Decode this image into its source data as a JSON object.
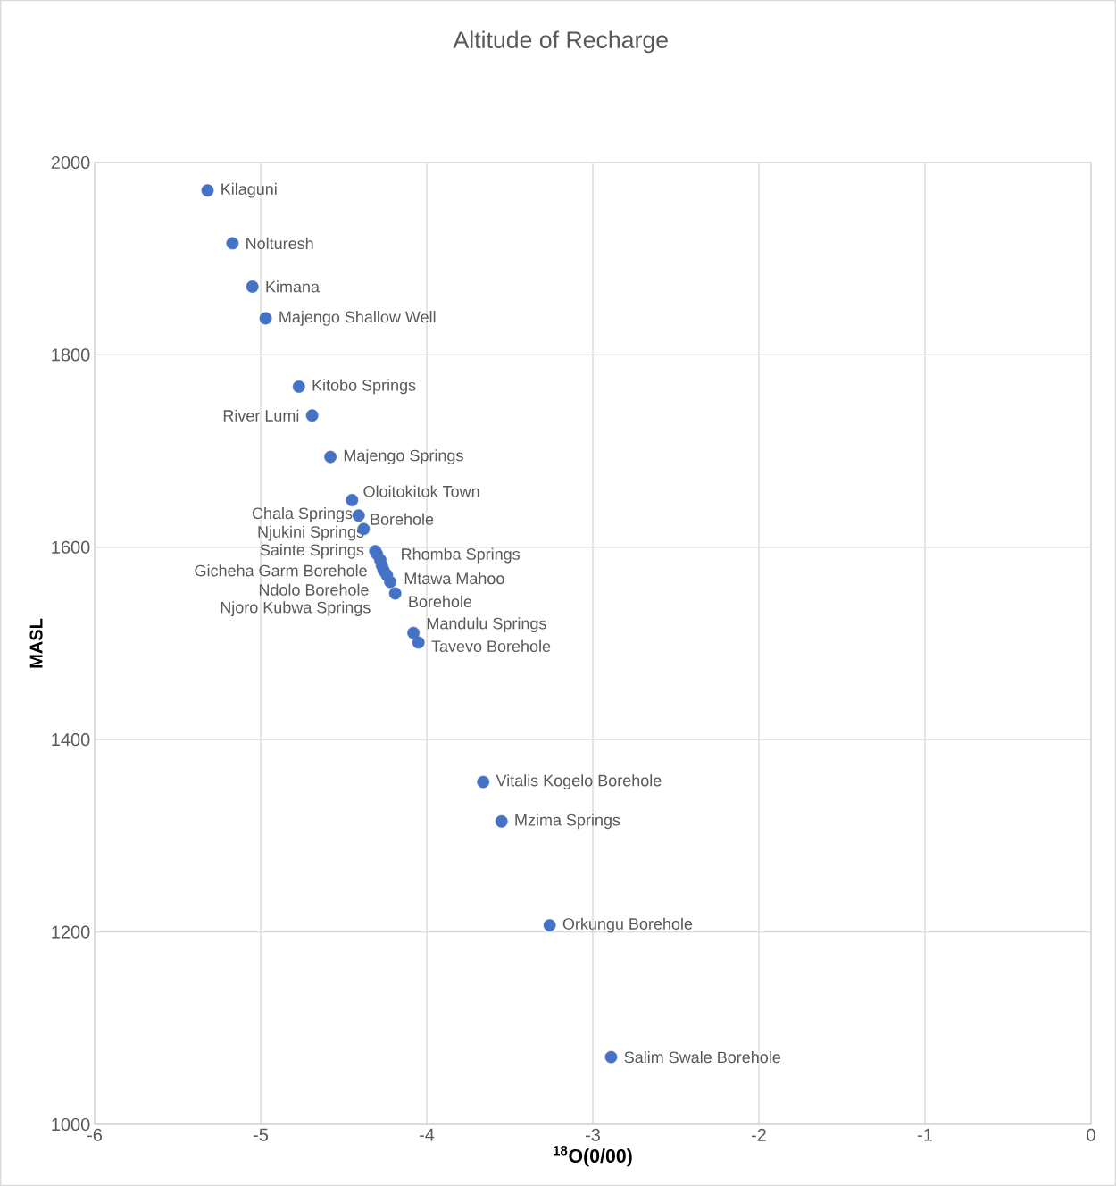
{
  "chart_data": {
    "type": "scatter",
    "title": "Altitude of Recharge",
    "xlabel": "$^{18}$O(0/00)",
    "ylabel": "MASL",
    "xlim": [
      -6,
      0
    ],
    "xticks": [
      -6,
      -5,
      -4,
      -3,
      -2,
      -1,
      0
    ],
    "ylim": [
      1000,
      2000
    ],
    "yticks": [
      1000,
      1200,
      1400,
      1600,
      1800,
      2000
    ],
    "grid": true,
    "marker": "circle",
    "series": [
      {
        "color": "#4472c4",
        "x": [
          -5.32,
          -5.17,
          -5.05,
          -4.97,
          -4.77,
          -4.69,
          -4.58,
          -4.45,
          -4.41,
          -4.38,
          -4.31,
          -4.3,
          -4.28,
          -4.27,
          -4.26,
          -4.24,
          -4.22,
          -4.19,
          -4.08,
          -4.05,
          -3.66,
          -3.55,
          -3.26,
          -2.89
        ],
        "values": [
          1971,
          1916,
          1871,
          1838,
          1767,
          1737,
          1694,
          1649,
          1633,
          1619,
          1596,
          1593,
          1587,
          1581,
          1576,
          1571,
          1564,
          1552,
          1511,
          1501,
          1356,
          1315,
          1207,
          1070
        ]
      }
    ],
    "annotations": [
      {
        "text": "Kilaguni",
        "x": -5.32,
        "y": 1971
      },
      {
        "text": "Nolturesh",
        "x": -5.17,
        "y": 1916
      },
      {
        "text": "Kimana",
        "x": -5.05,
        "y": 1871
      },
      {
        "text": "Majengo Shallow Well",
        "x": -4.97,
        "y": 1838
      },
      {
        "text": "Kitobo Springs",
        "x": -4.77,
        "y": 1767
      },
      {
        "text": "River Lumi",
        "x": -4.69,
        "y": 1737
      },
      {
        "text": "Majengo Springs",
        "x": -4.58,
        "y": 1694
      },
      {
        "text": "Oloitokitok Town",
        "x": -4.45,
        "y": 1649
      },
      {
        "text": "Borehole",
        "x": -4.41,
        "y": 1633
      },
      {
        "text": "Chala Springs",
        "x": -4.38,
        "y": 1619
      },
      {
        "text": "Njukini Springs",
        "x": -4.31,
        "y": 1596
      },
      {
        "text": "Sainte Springs",
        "x": -4.3,
        "y": 1593
      },
      {
        "text": "Gicheha Garm Borehole",
        "x": -4.28,
        "y": 1587
      },
      {
        "text": "Ndolo Borehole",
        "x": -4.27,
        "y": 1581
      },
      {
        "text": "Njoro Kubwa Springs",
        "x": -4.26,
        "y": 1576
      },
      {
        "text": "Rhomba Springs",
        "x": -4.24,
        "y": 1571
      },
      {
        "text": "Mtawa Mahoo",
        "x": -4.22,
        "y": 1564
      },
      {
        "text": "Borehole",
        "x": -4.19,
        "y": 1552
      },
      {
        "text": "Mandulu Springs",
        "x": -4.08,
        "y": 1511
      },
      {
        "text": "Tavevo Borehole",
        "x": -4.05,
        "y": 1501
      },
      {
        "text": "Vitalis Kogelo Borehole",
        "x": -3.66,
        "y": 1356
      },
      {
        "text": "Mzima Springs",
        "x": -3.55,
        "y": 1315
      },
      {
        "text": "Orkungu Borehole",
        "x": -3.26,
        "y": 1207
      },
      {
        "text": "Salim Swale Borehole",
        "x": -2.89,
        "y": 1070
      }
    ]
  }
}
